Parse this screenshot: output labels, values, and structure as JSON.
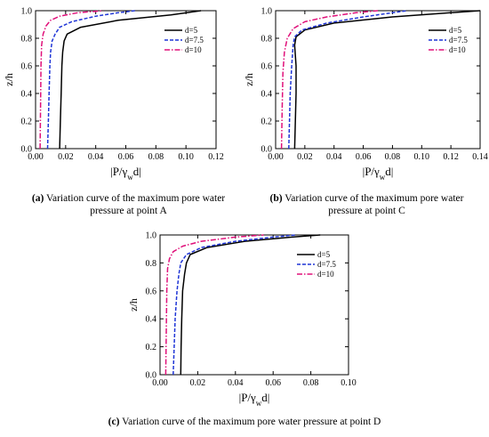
{
  "figure": {
    "captions": [
      {
        "label": "(a)",
        "text": "Variation curve of the maximum pore water pressure at point A"
      },
      {
        "label": "(b)",
        "text": "Variation curve of the maximum pore water pressure at point C"
      },
      {
        "label": "(c)",
        "text": "Variation curve of the maximum pore water pressure at point D"
      }
    ]
  },
  "colors": {
    "d5": "#000000",
    "d7_5": "#1f35d6",
    "d10": "#e0107a"
  },
  "chart_data": [
    {
      "id": "A",
      "type": "line",
      "xlabel": "|P/γwd|",
      "ylabel": "z/h",
      "xlim": [
        0,
        0.12
      ],
      "ylim": [
        0,
        1.0
      ],
      "xticks": [
        0.0,
        0.02,
        0.04,
        0.06,
        0.08,
        0.1,
        0.12
      ],
      "yticks": [
        0.0,
        0.2,
        0.4,
        0.6,
        0.8,
        1.0
      ],
      "legend_position": "top-right",
      "series": [
        {
          "name": "d=5",
          "style": "solid",
          "color": "#000000",
          "x": [
            0.016,
            0.0165,
            0.017,
            0.0175,
            0.018,
            0.019,
            0.021,
            0.03,
            0.055,
            0.09,
            0.11
          ],
          "y": [
            0.0,
            0.2,
            0.4,
            0.6,
            0.7,
            0.78,
            0.83,
            0.88,
            0.93,
            0.97,
            1.0
          ]
        },
        {
          "name": "d=7.5",
          "style": "dash",
          "color": "#1f35d6",
          "x": [
            0.008,
            0.0085,
            0.009,
            0.0095,
            0.01,
            0.011,
            0.013,
            0.016,
            0.024,
            0.04,
            0.055,
            0.066
          ],
          "y": [
            0.0,
            0.2,
            0.4,
            0.6,
            0.7,
            0.78,
            0.83,
            0.88,
            0.92,
            0.96,
            0.985,
            1.0
          ]
        },
        {
          "name": "d=10",
          "style": "dashdot",
          "color": "#e0107a",
          "x": [
            0.003,
            0.0033,
            0.0036,
            0.004,
            0.005,
            0.007,
            0.01,
            0.016,
            0.028,
            0.045
          ],
          "y": [
            0.0,
            0.3,
            0.6,
            0.75,
            0.83,
            0.89,
            0.93,
            0.96,
            0.985,
            1.0
          ]
        }
      ]
    },
    {
      "id": "C",
      "type": "line",
      "xlabel": "|P/γwd|",
      "ylabel": "z/h",
      "xlim": [
        0,
        0.14
      ],
      "ylim": [
        0,
        1.0
      ],
      "xticks": [
        0.0,
        0.02,
        0.04,
        0.06,
        0.08,
        0.1,
        0.12,
        0.14
      ],
      "yticks": [
        0.0,
        0.2,
        0.4,
        0.6,
        0.8,
        1.0
      ],
      "legend_position": "top-right",
      "series": [
        {
          "name": "d=5",
          "style": "solid",
          "color": "#000000",
          "x": [
            0.013,
            0.0135,
            0.014,
            0.014,
            0.013,
            0.014,
            0.02,
            0.04,
            0.08,
            0.12,
            0.14
          ],
          "y": [
            0.0,
            0.2,
            0.4,
            0.6,
            0.75,
            0.81,
            0.86,
            0.91,
            0.955,
            0.985,
            1.0
          ]
        },
        {
          "name": "d=7.5",
          "style": "dash",
          "color": "#1f35d6",
          "x": [
            0.009,
            0.0095,
            0.01,
            0.011,
            0.012,
            0.013,
            0.018,
            0.035,
            0.06,
            0.08,
            0.09
          ],
          "y": [
            0.0,
            0.2,
            0.4,
            0.6,
            0.75,
            0.81,
            0.86,
            0.91,
            0.955,
            0.985,
            1.0
          ]
        },
        {
          "name": "d=10",
          "style": "dashdot",
          "color": "#e0107a",
          "x": [
            0.004,
            0.0045,
            0.005,
            0.006,
            0.008,
            0.012,
            0.02,
            0.035,
            0.055,
            0.07
          ],
          "y": [
            0.0,
            0.3,
            0.55,
            0.7,
            0.8,
            0.87,
            0.92,
            0.955,
            0.985,
            1.0
          ]
        }
      ]
    },
    {
      "id": "D",
      "type": "line",
      "xlabel": "|P/γwd|",
      "ylabel": "z/h",
      "xlim": [
        0,
        0.1
      ],
      "ylim": [
        0,
        1.0
      ],
      "xticks": [
        0.0,
        0.02,
        0.04,
        0.06,
        0.08,
        0.1
      ],
      "yticks": [
        0.0,
        0.2,
        0.4,
        0.6,
        0.8,
        1.0
      ],
      "legend_position": "top-right",
      "series": [
        {
          "name": "d=5",
          "style": "solid",
          "color": "#000000",
          "x": [
            0.011,
            0.0112,
            0.0115,
            0.012,
            0.013,
            0.014,
            0.016,
            0.025,
            0.045,
            0.07,
            0.085
          ],
          "y": [
            0.0,
            0.2,
            0.4,
            0.6,
            0.72,
            0.8,
            0.86,
            0.91,
            0.955,
            0.985,
            1.0
          ]
        },
        {
          "name": "d=7.5",
          "style": "dash",
          "color": "#1f35d6",
          "x": [
            0.007,
            0.0075,
            0.008,
            0.009,
            0.01,
            0.011,
            0.014,
            0.022,
            0.04,
            0.06,
            0.072
          ],
          "y": [
            0.0,
            0.2,
            0.4,
            0.6,
            0.72,
            0.8,
            0.86,
            0.91,
            0.955,
            0.985,
            1.0
          ]
        },
        {
          "name": "d=10",
          "style": "dashdot",
          "color": "#e0107a",
          "x": [
            0.003,
            0.0033,
            0.0036,
            0.004,
            0.005,
            0.007,
            0.012,
            0.022,
            0.04,
            0.055
          ],
          "y": [
            0.0,
            0.3,
            0.6,
            0.76,
            0.83,
            0.88,
            0.92,
            0.955,
            0.985,
            1.0
          ]
        }
      ]
    }
  ]
}
